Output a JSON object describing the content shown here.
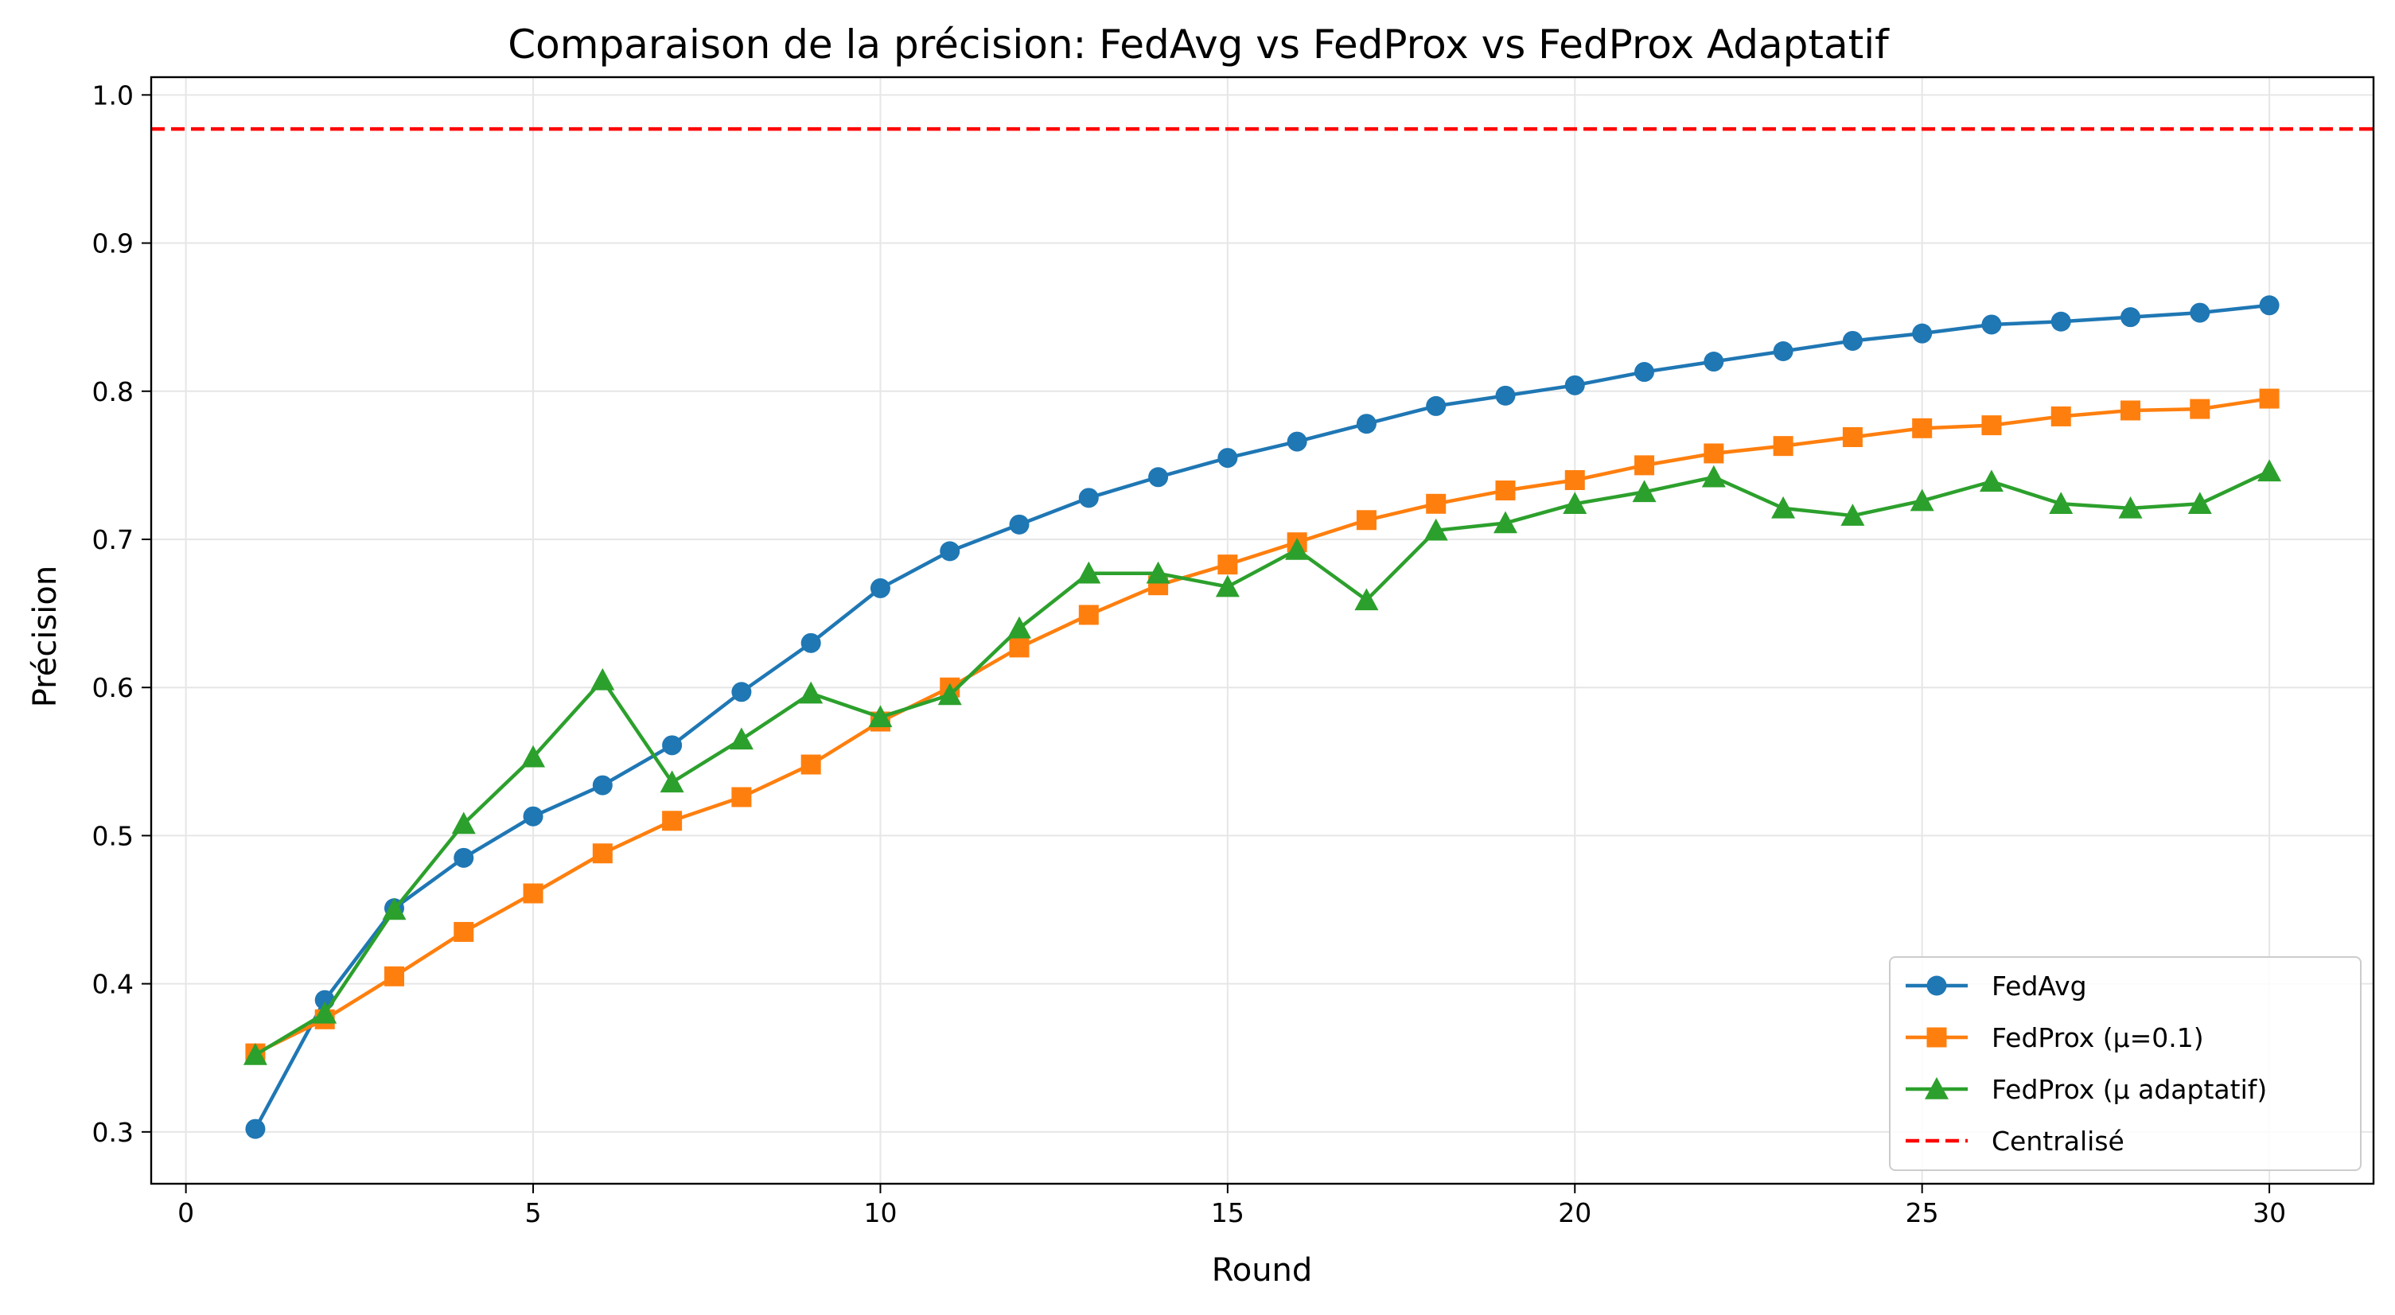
{
  "chart_data": {
    "type": "line",
    "title": "Comparaison de la précision: FedAvg vs FedProx vs FedProx Adaptatif",
    "xlabel": "Round",
    "ylabel": "Précision",
    "xlim": [
      -0.5,
      31.5
    ],
    "ylim": [
      0.265,
      1.012
    ],
    "xticks": [
      0,
      5,
      10,
      15,
      20,
      25,
      30
    ],
    "yticks": [
      0.3,
      0.4,
      0.5,
      0.6,
      0.7,
      0.8,
      0.9,
      1.0
    ],
    "xtick_labels": [
      "0",
      "5",
      "10",
      "15",
      "20",
      "25",
      "30"
    ],
    "ytick_labels": [
      "0.3",
      "0.4",
      "0.5",
      "0.6",
      "0.7",
      "0.8",
      "0.9",
      "1.0"
    ],
    "grid": true,
    "legend_position": "bottom-right",
    "x": [
      1,
      2,
      3,
      4,
      5,
      6,
      7,
      8,
      9,
      10,
      11,
      12,
      13,
      14,
      15,
      16,
      17,
      18,
      19,
      20,
      21,
      22,
      23,
      24,
      25,
      26,
      27,
      28,
      29,
      30
    ],
    "series": [
      {
        "name": "FedAvg",
        "color": "#1f77b4",
        "marker": "circle",
        "values": [
          0.302,
          0.389,
          0.451,
          0.485,
          0.513,
          0.534,
          0.561,
          0.597,
          0.63,
          0.667,
          0.692,
          0.71,
          0.728,
          0.742,
          0.755,
          0.766,
          0.778,
          0.79,
          0.797,
          0.804,
          0.813,
          0.82,
          0.827,
          0.834,
          0.839,
          0.845,
          0.847,
          0.85,
          0.853,
          0.858
        ]
      },
      {
        "name": "FedProx (μ=0.1)",
        "color": "#ff7f0e",
        "marker": "square",
        "values": [
          0.353,
          0.376,
          0.405,
          0.435,
          0.461,
          0.488,
          0.51,
          0.526,
          0.548,
          0.577,
          0.6,
          0.627,
          0.649,
          0.669,
          0.683,
          0.698,
          0.713,
          0.724,
          0.733,
          0.74,
          0.75,
          0.758,
          0.763,
          0.769,
          0.775,
          0.777,
          0.783,
          0.787,
          0.788,
          0.795
        ]
      },
      {
        "name": "FedProx (μ adaptatif)",
        "color": "#2ca02c",
        "marker": "triangle",
        "values": [
          0.352,
          0.38,
          0.45,
          0.508,
          0.553,
          0.605,
          0.536,
          0.565,
          0.596,
          0.58,
          0.595,
          0.64,
          0.677,
          0.677,
          0.668,
          0.693,
          0.659,
          0.706,
          0.711,
          0.724,
          0.732,
          0.742,
          0.721,
          0.716,
          0.726,
          0.739,
          0.724,
          0.721,
          0.724,
          0.746
        ]
      }
    ],
    "reference_lines": [
      {
        "name": "Centralisé",
        "y": 0.977,
        "color": "#ff0000",
        "style": "dashed"
      }
    ]
  }
}
